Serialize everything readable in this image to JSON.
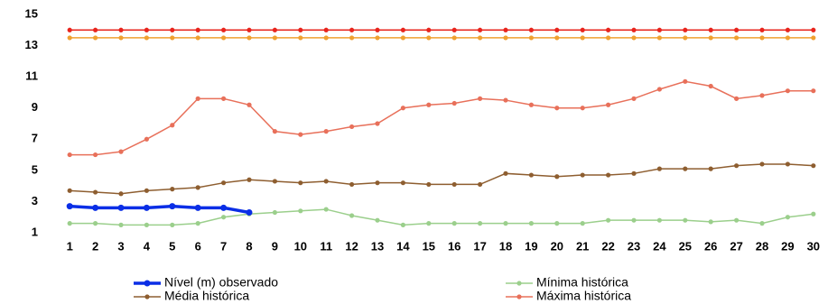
{
  "chart_data": {
    "type": "line",
    "categories": [
      "1",
      "2",
      "3",
      "4",
      "5",
      "6",
      "7",
      "8",
      "9",
      "10",
      "11",
      "12",
      "13",
      "14",
      "15",
      "16",
      "17",
      "18",
      "19",
      "20",
      "21",
      "22",
      "23",
      "24",
      "25",
      "26",
      "27",
      "28",
      "29",
      "30"
    ],
    "ylim": [
      1,
      15
    ],
    "yticks": [
      1,
      3,
      5,
      7,
      9,
      11,
      13,
      15
    ],
    "grid": false,
    "series": [
      {
        "name": "Nível (m) observado",
        "color": "#0a2ee6",
        "width": 3.5,
        "values": [
          2.7,
          2.6,
          2.6,
          2.6,
          2.7,
          2.6,
          2.6,
          2.3,
          null,
          null,
          null,
          null,
          null,
          null,
          null,
          null,
          null,
          null,
          null,
          null,
          null,
          null,
          null,
          null,
          null,
          null,
          null,
          null,
          null,
          null
        ]
      },
      {
        "name": "Mínima histórica",
        "color": "#9bcf8c",
        "width": 1.5,
        "values": [
          1.6,
          1.6,
          1.5,
          1.5,
          1.5,
          1.6,
          2.0,
          2.2,
          2.3,
          2.4,
          2.5,
          2.1,
          1.8,
          1.5,
          1.6,
          1.6,
          1.6,
          1.6,
          1.6,
          1.6,
          1.6,
          1.8,
          1.8,
          1.8,
          1.8,
          1.7,
          1.8,
          1.6,
          2.0,
          2.2
        ]
      },
      {
        "name": "Média histórica",
        "color": "#8e5e30",
        "width": 1.5,
        "values": [
          3.7,
          3.6,
          3.5,
          3.7,
          3.8,
          3.9,
          4.2,
          4.4,
          4.3,
          4.2,
          4.3,
          4.1,
          4.2,
          4.2,
          4.1,
          4.1,
          4.1,
          4.8,
          4.7,
          4.6,
          4.7,
          4.7,
          4.8,
          5.1,
          5.1,
          5.1,
          5.3,
          5.4,
          5.4,
          5.3
        ]
      },
      {
        "name": "Máxima histórica",
        "color": "#e8705a",
        "width": 1.5,
        "values": [
          6.0,
          6.0,
          6.2,
          7.0,
          7.9,
          9.6,
          9.6,
          9.2,
          7.5,
          7.3,
          7.5,
          7.8,
          8.0,
          9.0,
          9.2,
          9.3,
          9.6,
          9.5,
          9.2,
          9.0,
          9.0,
          9.2,
          9.6,
          10.2,
          10.7,
          10.4,
          9.6,
          9.8,
          10.1,
          10.1
        ]
      },
      {
        "color": "#f0a030",
        "width": 1.5,
        "values": [
          13.5,
          13.5,
          13.5,
          13.5,
          13.5,
          13.5,
          13.5,
          13.5,
          13.5,
          13.5,
          13.5,
          13.5,
          13.5,
          13.5,
          13.5,
          13.5,
          13.5,
          13.5,
          13.5,
          13.5,
          13.5,
          13.5,
          13.5,
          13.5,
          13.5,
          13.5,
          13.5,
          13.5,
          13.5,
          13.5
        ]
      },
      {
        "color": "#e8241c",
        "width": 1.5,
        "values": [
          14,
          14,
          14,
          14,
          14,
          14,
          14,
          14,
          14,
          14,
          14,
          14,
          14,
          14,
          14,
          14,
          14,
          14,
          14,
          14,
          14,
          14,
          14,
          14,
          14,
          14,
          14,
          14,
          14,
          14
        ]
      }
    ]
  }
}
